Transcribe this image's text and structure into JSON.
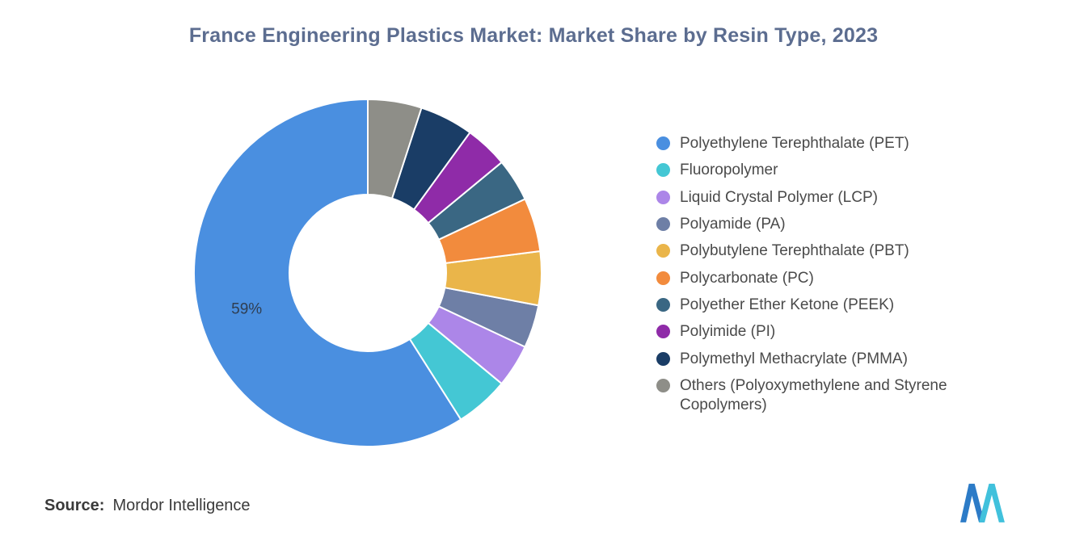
{
  "title": "France Engineering Plastics Market: Market Share by Resin Type, 2023",
  "source": {
    "label": "Source:",
    "value": "Mordor Intelligence"
  },
  "logo_name": "mordor-intelligence-logo",
  "colors": {
    "background": "#ffffff",
    "title_text": "#5c6d90",
    "legend_text": "#4a4a4a",
    "slice_label_text": "#2f3e52",
    "logo_blue": "#2c7bc7",
    "logo_teal": "#41c1dc"
  },
  "chart_data": {
    "type": "pie",
    "donut": true,
    "title": "France Engineering Plastics Market: Market Share by Resin Type, 2023",
    "legend_position": "right",
    "start_angle": "top",
    "direction": "counterclockwise",
    "inner_radius_ratio": 0.45,
    "categories": [
      "Polyethylene Terephthalate (PET)",
      "Fluoropolymer",
      "Liquid Crystal Polymer (LCP)",
      "Polyamide (PA)",
      "Polybutylene Terephthalate (PBT)",
      "Polycarbonate (PC)",
      "Polyether Ether Ketone (PEEK)",
      "Polyimide (PI)",
      "Polymethyl Methacrylate (PMMA)",
      "Others (Polyoxymethylene and Styrene Copolymers)"
    ],
    "values": [
      59,
      5,
      4,
      4,
      5,
      5,
      4,
      4,
      5,
      5
    ],
    "colors": [
      "#4a8fe0",
      "#44c7d4",
      "#ac86e8",
      "#6e7fa6",
      "#eab54a",
      "#f28b3d",
      "#3a6783",
      "#8f2ba8",
      "#1a3d66",
      "#8e8e88"
    ],
    "data_labels": [
      {
        "category": "Polyethylene Terephthalate (PET)",
        "text": "59%"
      }
    ]
  }
}
